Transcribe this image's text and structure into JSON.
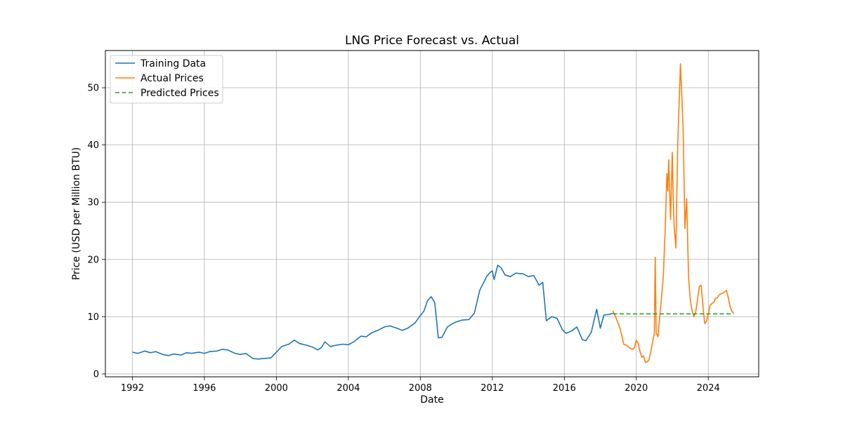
{
  "chart_data": {
    "type": "line",
    "title": "LNG Price Forecast vs. Actual",
    "xlabel": "Date",
    "ylabel": "Price (USD per Million BTU)",
    "xlim": [
      1990.5,
      2026.8
    ],
    "ylim": [
      -0.5,
      56.5
    ],
    "x_ticks": [
      1992,
      1996,
      2000,
      2004,
      2008,
      2012,
      2016,
      2020,
      2024
    ],
    "y_ticks": [
      0,
      10,
      20,
      30,
      40,
      50
    ],
    "grid": true,
    "legend_position": "top-left",
    "series": [
      {
        "name": "Training Data",
        "color": "#1f77b4",
        "dash": "solid",
        "x": [
          1992.0,
          1992.3,
          1992.7,
          1993.0,
          1993.3,
          1993.7,
          1994.0,
          1994.3,
          1994.7,
          1995.0,
          1995.3,
          1995.7,
          1996.0,
          1996.3,
          1996.7,
          1997.0,
          1997.3,
          1997.7,
          1998.0,
          1998.3,
          1998.7,
          1999.0,
          1999.3,
          1999.7,
          2000.0,
          2000.3,
          2000.7,
          2001.0,
          2001.3,
          2001.7,
          2002.0,
          2002.3,
          2002.5,
          2002.7,
          2003.0,
          2003.3,
          2003.7,
          2004.0,
          2004.3,
          2004.7,
          2005.0,
          2005.3,
          2005.7,
          2006.0,
          2006.3,
          2006.7,
          2007.0,
          2007.3,
          2007.7,
          2008.0,
          2008.2,
          2008.4,
          2008.6,
          2008.8,
          2009.0,
          2009.2,
          2009.5,
          2009.8,
          2010.0,
          2010.3,
          2010.7,
          2011.0,
          2011.3,
          2011.7,
          2011.9,
          2012.0,
          2012.1,
          2012.3,
          2012.5,
          2012.7,
          2013.0,
          2013.3,
          2013.7,
          2014.0,
          2014.3,
          2014.6,
          2014.8,
          2015.0,
          2015.3,
          2015.6,
          2015.9,
          2016.1,
          2016.4,
          2016.7,
          2017.0,
          2017.2,
          2017.5,
          2017.8,
          2018.0,
          2018.2,
          2018.5,
          2018.7
        ],
        "y": [
          3.8,
          3.6,
          4.0,
          3.7,
          3.9,
          3.4,
          3.2,
          3.5,
          3.3,
          3.7,
          3.6,
          3.8,
          3.6,
          3.9,
          4.0,
          4.3,
          4.2,
          3.6,
          3.4,
          3.6,
          2.7,
          2.6,
          2.7,
          2.8,
          3.8,
          4.8,
          5.2,
          5.9,
          5.3,
          5.0,
          4.7,
          4.2,
          4.6,
          5.6,
          4.8,
          5.0,
          5.2,
          5.1,
          5.6,
          6.6,
          6.5,
          7.2,
          7.7,
          8.2,
          8.4,
          8.0,
          7.6,
          8.0,
          8.9,
          10.2,
          11.0,
          12.8,
          13.5,
          12.5,
          6.3,
          6.4,
          8.2,
          8.8,
          9.1,
          9.4,
          9.5,
          10.6,
          14.6,
          17.1,
          17.8,
          18.0,
          16.5,
          19.0,
          18.5,
          17.3,
          17.0,
          17.6,
          17.5,
          17.0,
          17.2,
          15.5,
          16.0,
          9.3,
          10.0,
          9.7,
          7.7,
          7.1,
          7.5,
          8.2,
          6.0,
          5.8,
          7.3,
          11.3,
          8.0,
          10.3,
          10.4,
          10.6
        ]
      },
      {
        "name": "Actual Prices",
        "color": "#ff7f0e",
        "dash": "solid",
        "x": [
          2018.7,
          2018.9,
          2019.1,
          2019.3,
          2019.5,
          2019.7,
          2019.8,
          2019.9,
          2020.0,
          2020.1,
          2020.2,
          2020.3,
          2020.4,
          2020.5,
          2020.6,
          2020.7,
          2020.8,
          2020.9,
          2021.0,
          2021.05,
          2021.1,
          2021.2,
          2021.3,
          2021.4,
          2021.5,
          2021.6,
          2021.7,
          2021.75,
          2021.8,
          2021.9,
          2022.0,
          2022.05,
          2022.1,
          2022.2,
          2022.3,
          2022.45,
          2022.6,
          2022.7,
          2022.8,
          2022.9,
          2023.0,
          2023.1,
          2023.2,
          2023.3,
          2023.4,
          2023.5,
          2023.6,
          2023.7,
          2023.8,
          2023.9,
          2024.0,
          2024.1,
          2024.2,
          2024.3,
          2024.4,
          2024.5,
          2024.6,
          2024.7,
          2024.8,
          2024.9,
          2025.0,
          2025.1,
          2025.2,
          2025.3,
          2025.4
        ],
        "y": [
          11.0,
          9.6,
          7.9,
          5.2,
          4.9,
          4.4,
          4.3,
          4.6,
          5.9,
          5.4,
          4.0,
          2.9,
          3.2,
          2.0,
          2.1,
          2.4,
          3.8,
          5.5,
          7.1,
          20.4,
          7.2,
          6.5,
          9.9,
          13.5,
          17.0,
          25.0,
          35.0,
          32.0,
          37.4,
          27.0,
          38.7,
          31.0,
          26.0,
          22.0,
          40.0,
          54.2,
          43.0,
          25.4,
          30.6,
          17.0,
          13.0,
          11.0,
          10.0,
          10.8,
          13.0,
          15.3,
          15.5,
          12.0,
          8.8,
          9.2,
          10.5,
          12.0,
          12.3,
          12.5,
          13.2,
          13.3,
          13.8,
          14.0,
          14.1,
          14.3,
          14.6,
          13.5,
          11.9,
          11.0,
          10.6
        ]
      },
      {
        "name": "Predicted Prices",
        "color": "#2ca02c",
        "dash": "dashed",
        "x": [
          2018.7,
          2025.4
        ],
        "y": [
          10.5,
          10.5
        ]
      }
    ]
  }
}
